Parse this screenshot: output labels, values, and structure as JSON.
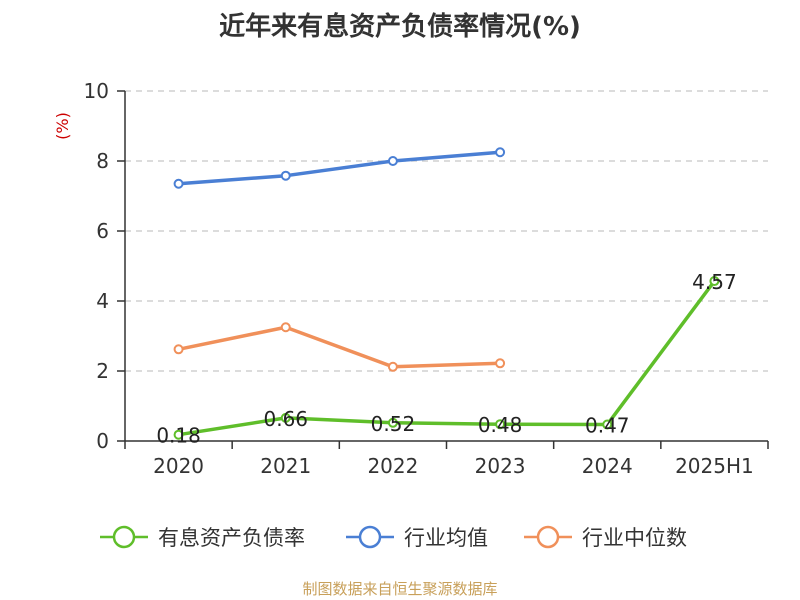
{
  "chart_data": {
    "type": "line",
    "title": "近年来有息资产负债率情况(%)",
    "y_unit": "(%)",
    "categories": [
      "2020",
      "2021",
      "2022",
      "2023",
      "2024",
      "2025H1"
    ],
    "ylim": [
      0,
      10
    ],
    "yticks": [
      "0",
      "2",
      "4",
      "6",
      "8",
      "10"
    ],
    "grid": true,
    "legend_position": "bottom",
    "series": [
      {
        "name": "有息资产负债率",
        "color": "#5fbe2a",
        "values": [
          0.18,
          0.66,
          0.52,
          0.48,
          0.47,
          4.57
        ],
        "labels": [
          "0.18",
          "0.66",
          "0.52",
          "0.48",
          "0.47",
          "4.57"
        ]
      },
      {
        "name": "行业均值",
        "color": "#4a7fd4",
        "values": [
          7.35,
          7.58,
          8.0,
          8.25,
          null,
          null
        ]
      },
      {
        "name": "行业中位数",
        "color": "#f0905a",
        "values": [
          2.62,
          3.25,
          2.12,
          2.22,
          null,
          null
        ]
      }
    ]
  },
  "footer": {
    "source": "制图数据来自恒生聚源数据库"
  }
}
